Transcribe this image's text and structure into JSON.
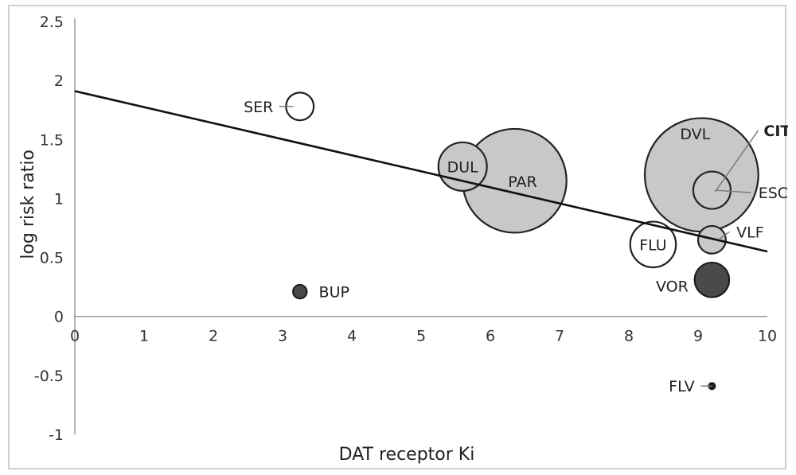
{
  "chart_data": {
    "type": "scatter",
    "title": "",
    "xlabel": "DAT receptor Ki",
    "ylabel": "log risk ratio",
    "xlim": [
      0,
      10
    ],
    "ylim": [
      -1,
      2.5
    ],
    "x_ticks": [
      0,
      1,
      2,
      3,
      4,
      5,
      6,
      7,
      8,
      9,
      10
    ],
    "y_ticks": [
      -1,
      -0.5,
      0,
      0.5,
      1,
      1.5,
      2,
      2.5
    ],
    "y_tick_labels": [
      "-1",
      "-0.5",
      "0",
      "0.5",
      "1",
      "1.5",
      "2",
      "2.5"
    ],
    "trendline": {
      "intercept": 1.91,
      "slope": -0.136
    },
    "points": [
      {
        "label": "SER",
        "x": 3.25,
        "y": 1.78,
        "size": 0.2,
        "fill": "#ffffff"
      },
      {
        "label": "BUP",
        "x": 3.25,
        "y": 0.21,
        "size": 0.1,
        "fill": "#4a4a4a"
      },
      {
        "label": "DUL",
        "x": 5.6,
        "y": 1.27,
        "size": 0.35,
        "fill": "#c8c8c8"
      },
      {
        "label": "PAR",
        "x": 6.35,
        "y": 1.15,
        "size": 0.75,
        "fill": "#c8c8c8"
      },
      {
        "label": "DVL",
        "x": 9.05,
        "y": 1.2,
        "size": 0.82,
        "fill": "#c8c8c8"
      },
      {
        "label": "ESC",
        "x": 9.2,
        "y": 1.07,
        "size": 0.27,
        "fill": "#c8c8c8"
      },
      {
        "label": "CIT",
        "x": 9.2,
        "y": 1.07,
        "size": 0.0,
        "fill": "#c8c8c8"
      },
      {
        "label": "FLU",
        "x": 8.35,
        "y": 0.61,
        "size": 0.33,
        "fill": "#ffffff"
      },
      {
        "label": "VLF",
        "x": 9.2,
        "y": 0.65,
        "size": 0.2,
        "fill": "#c8c8c8"
      },
      {
        "label": "VOR",
        "x": 9.2,
        "y": 0.31,
        "size": 0.25,
        "fill": "#4a4a4a"
      },
      {
        "label": "FLV",
        "x": 9.2,
        "y": -0.59,
        "size": 0.04,
        "fill": "#222222"
      }
    ]
  }
}
